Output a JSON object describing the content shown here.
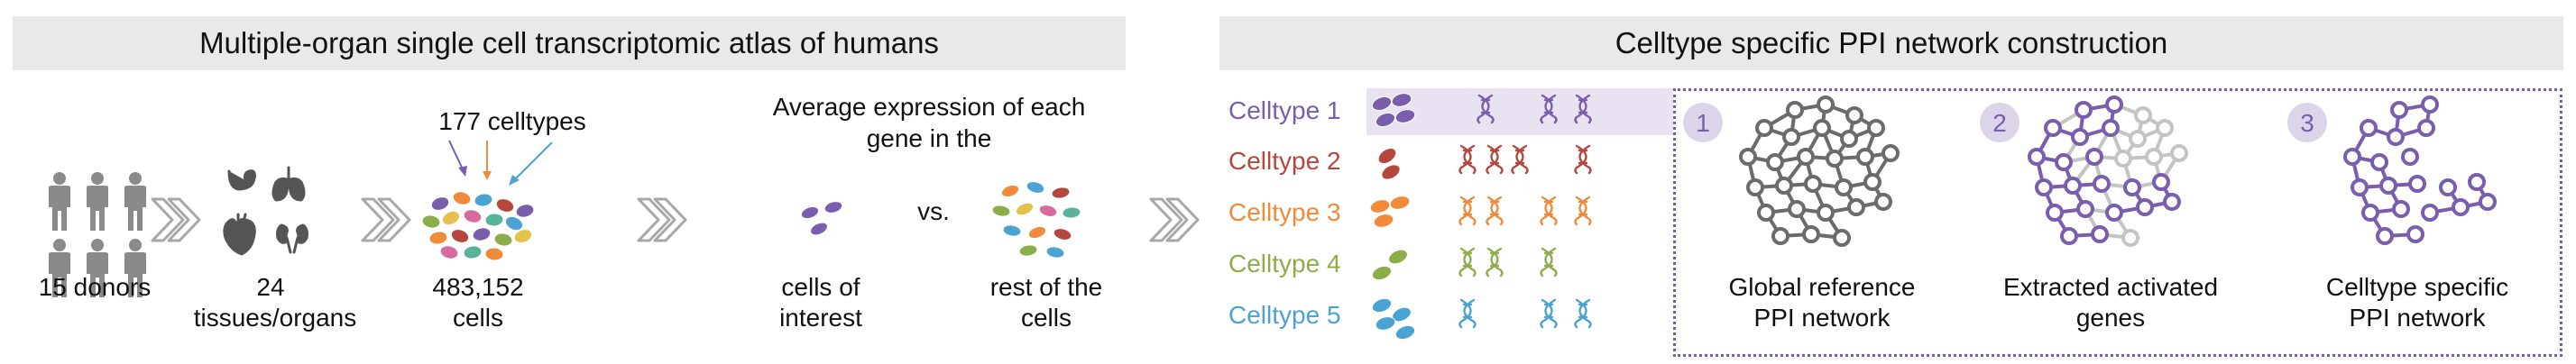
{
  "left_panel": {
    "title": "Multiple-organ single cell transcriptomic atlas of humans",
    "donors_label": "15 donors",
    "tissues_count": "24",
    "tissues_label": "tissues/organs",
    "celltypes_label": "177 celltypes",
    "cells_count": "483,152",
    "cells_label": "cells",
    "avg_expr_line1": "Average expression of each",
    "avg_expr_line2": "gene in the",
    "vs_label": "vs.",
    "interest_line1": "cells of",
    "interest_line2": "interest",
    "rest_line1": "rest of the",
    "rest_line2": "cells"
  },
  "right_panel": {
    "title": "Celltype specific PPI network construction",
    "celltypes": [
      {
        "label": "Celltype 1",
        "color": "#7a5eae"
      },
      {
        "label": "Celltype 2",
        "color": "#b5473d"
      },
      {
        "label": "Celltype 3",
        "color": "#ef8b3a"
      },
      {
        "label": "Celltype 4",
        "color": "#8cae4a"
      },
      {
        "label": "Celltype 5",
        "color": "#4aa3d2"
      }
    ],
    "steps": [
      {
        "number": "1",
        "line1": "Global reference",
        "line2": "PPI network"
      },
      {
        "number": "2",
        "line1": "Extracted activated",
        "line2": "genes"
      },
      {
        "number": "3",
        "line1": "Celltype specific",
        "line2": "PPI network"
      }
    ]
  },
  "colors": {
    "banner": "#e9e9e9",
    "chevron": "#a8a8a8",
    "network_gray": "#6b6b6b",
    "network_light": "#c4c4c4",
    "network_purple": "#7a5eae",
    "step_circle": "#dcd5ea",
    "highlight_row": "#e8e2f1"
  },
  "icons": [
    "person-icon",
    "stomach-icon",
    "lungs-icon",
    "heart-icon",
    "kidney-icon",
    "chevron-right-icon",
    "cell-icon",
    "dna-icon",
    "network-icon"
  ]
}
